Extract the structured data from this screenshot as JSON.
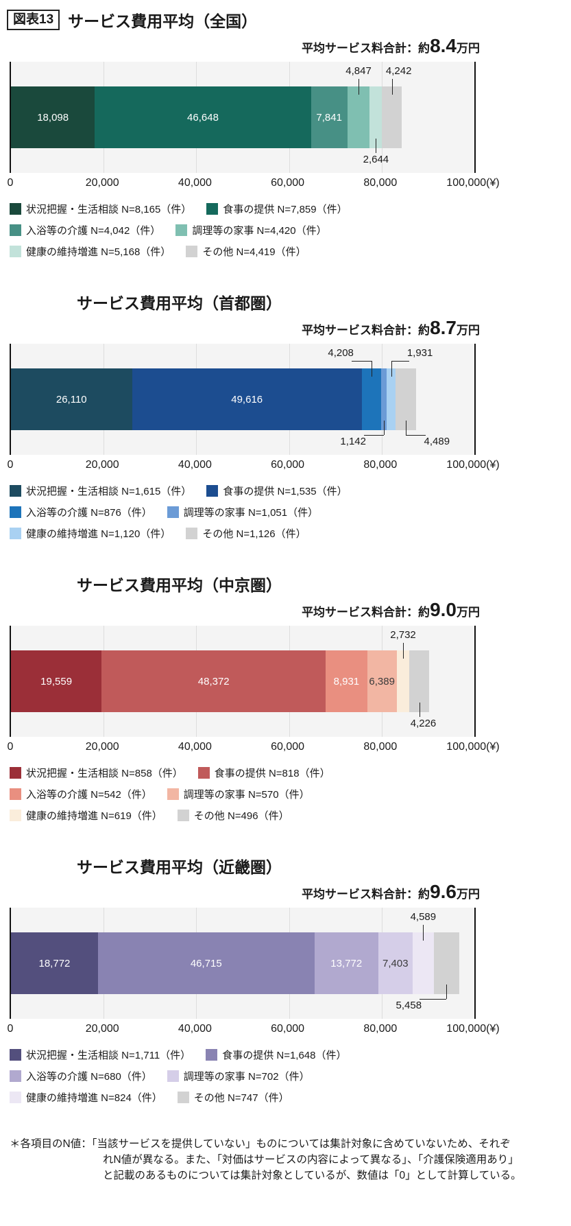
{
  "figure_label": "図表13",
  "page": {
    "total_prefix": "平均サービス料合計：約",
    "total_suffix": "万円"
  },
  "chart_data": [
    {
      "type": "bar",
      "stacked": true,
      "orientation": "horizontal",
      "grid": true,
      "legend_position": "bottom",
      "title": "サービス費用平均（全国）",
      "total_value": "8.4",
      "xlim": [
        0,
        100000
      ],
      "x_ticks": [
        "0",
        "20,000",
        "40,000",
        "60,000",
        "80,000",
        "100,000(¥)"
      ],
      "series": [
        {
          "name": "状況把握・生活相談",
          "n": "N=8,165（件）",
          "value": 18098,
          "display": "18,098",
          "color": "#1a493c",
          "label": "inside",
          "label_color": "#ffffff",
          "shift": 0
        },
        {
          "name": "食事の提供",
          "n": "N=7,859（件）",
          "value": 46648,
          "display": "46,648",
          "color": "#15695c",
          "label": "inside",
          "label_color": "#ffffff",
          "shift": 0
        },
        {
          "name": "入浴等の介護",
          "n": "N=4,042（件）",
          "value": 7841,
          "display": "7,841",
          "color": "#479085",
          "label": "inside",
          "label_color": "#ffffff",
          "shift": 0
        },
        {
          "name": "調理等の家事",
          "n": "N=4,420（件）",
          "value": 4847,
          "display": "4,847",
          "color": "#7fbfb1",
          "label": "above",
          "label_color": "#1a1a1a",
          "shift": 0
        },
        {
          "name": "健康の維持増進",
          "n": "N=5,168（件）",
          "value": 2644,
          "display": "2,644",
          "color": "#c2e2da",
          "label": "below",
          "label_color": "#1a1a1a",
          "shift": 0
        },
        {
          "name": "その他",
          "n": "N=4,419（件）",
          "value": 4242,
          "display": "4,242",
          "color": "#d2d2d2",
          "label": "above",
          "label_color": "#1a1a1a",
          "shift": 10
        }
      ]
    },
    {
      "type": "bar",
      "stacked": true,
      "orientation": "horizontal",
      "grid": true,
      "legend_position": "bottom",
      "title": "サービス費用平均（首都圏）",
      "total_value": "8.7",
      "xlim": [
        0,
        100000
      ],
      "x_ticks": [
        "0",
        "20,000",
        "40,000",
        "60,000",
        "80,000",
        "100,000(¥)"
      ],
      "series": [
        {
          "name": "状況把握・生活相談",
          "n": "N=1,615（件）",
          "value": 26110,
          "display": "26,110",
          "color": "#1d4b60",
          "label": "inside",
          "label_color": "#ffffff",
          "shift": 0
        },
        {
          "name": "食事の提供",
          "n": "N=1,535（件）",
          "value": 49616,
          "display": "49,616",
          "color": "#1c4d90",
          "label": "inside",
          "label_color": "#ffffff",
          "shift": 0
        },
        {
          "name": "入浴等の介護",
          "n": "N=876（件）",
          "value": 4208,
          "display": "4,208",
          "color": "#1d74ba",
          "label": "above",
          "label_color": "#1a1a1a",
          "shift": -45
        },
        {
          "name": "調理等の家事",
          "n": "N=1,051（件）",
          "value": 1142,
          "display": "1,142",
          "color": "#6b9bd6",
          "label": "below",
          "label_color": "#1a1a1a",
          "shift": -45
        },
        {
          "name": "健康の維持増進",
          "n": "N=1,120（件）",
          "value": 1931,
          "display": "1,931",
          "color": "#a9d1f2",
          "label": "above",
          "label_color": "#1a1a1a",
          "shift": 42
        },
        {
          "name": "その他",
          "n": "N=1,126（件）",
          "value": 4489,
          "display": "4,489",
          "color": "#d2d2d2",
          "label": "below",
          "label_color": "#1a1a1a",
          "shift": 45
        }
      ]
    },
    {
      "type": "bar",
      "stacked": true,
      "orientation": "horizontal",
      "grid": true,
      "legend_position": "bottom",
      "title": "サービス費用平均（中京圏）",
      "total_value": "9.0",
      "xlim": [
        0,
        100000
      ],
      "x_ticks": [
        "0",
        "20,000",
        "40,000",
        "60,000",
        "80,000",
        "100,000(¥)"
      ],
      "series": [
        {
          "name": "状況把握・生活相談",
          "n": "N=858（件）",
          "value": 19559,
          "display": "19,559",
          "color": "#9b2f38",
          "label": "inside",
          "label_color": "#ffffff",
          "shift": 0
        },
        {
          "name": "食事の提供",
          "n": "N=818（件）",
          "value": 48372,
          "display": "48,372",
          "color": "#c05a5a",
          "label": "inside",
          "label_color": "#ffffff",
          "shift": 0
        },
        {
          "name": "入浴等の介護",
          "n": "N=542（件）",
          "value": 8931,
          "display": "8,931",
          "color": "#e98f80",
          "label": "inside",
          "label_color": "#ffffff",
          "shift": 0
        },
        {
          "name": "調理等の家事",
          "n": "N=570（件）",
          "value": 6389,
          "display": "6,389",
          "color": "#f2b6a3",
          "label": "inside",
          "label_color": "#3b3b3b",
          "shift": 0
        },
        {
          "name": "健康の維持増進",
          "n": "N=619（件）",
          "value": 2732,
          "display": "2,732",
          "color": "#faeddb",
          "label": "above",
          "label_color": "#1a1a1a",
          "shift": 0
        },
        {
          "name": "その他",
          "n": "N=496（件）",
          "value": 4226,
          "display": "4,226",
          "color": "#d2d2d2",
          "label": "below",
          "label_color": "#1a1a1a",
          "shift": 6
        }
      ]
    },
    {
      "type": "bar",
      "stacked": true,
      "orientation": "horizontal",
      "grid": true,
      "legend_position": "bottom",
      "title": "サービス費用平均（近畿圏）",
      "total_value": "9.6",
      "xlim": [
        0,
        100000
      ],
      "x_ticks": [
        "0",
        "20,000",
        "40,000",
        "60,000",
        "80,000",
        "100,000(¥)"
      ],
      "series": [
        {
          "name": "状況把握・生活相談",
          "n": "N=1,711（件）",
          "value": 18772,
          "display": "18,772",
          "color": "#534f7d",
          "label": "inside",
          "label_color": "#ffffff",
          "shift": 0
        },
        {
          "name": "食事の提供",
          "n": "N=1,648（件）",
          "value": 46715,
          "display": "46,715",
          "color": "#8983b2",
          "label": "inside",
          "label_color": "#ffffff",
          "shift": 0
        },
        {
          "name": "入浴等の介護",
          "n": "N=680（件）",
          "value": 13772,
          "display": "13,772",
          "color": "#b1a9cf",
          "label": "inside",
          "label_color": "#ffffff",
          "shift": 0
        },
        {
          "name": "調理等の家事",
          "n": "N=702（件）",
          "value": 7403,
          "display": "7,403",
          "color": "#d5cee8",
          "label": "inside",
          "label_color": "#3b3b3b",
          "shift": 0
        },
        {
          "name": "健康の維持増進",
          "n": "N=824（件）",
          "value": 4589,
          "display": "4,589",
          "color": "#ece7f4",
          "label": "above",
          "label_color": "#1a1a1a",
          "shift": 0
        },
        {
          "name": "その他",
          "n": "N=747（件）",
          "value": 5458,
          "display": "5,458",
          "color": "#d2d2d2",
          "label": "below",
          "label_color": "#1a1a1a",
          "shift": -55
        }
      ]
    }
  ],
  "footnote": {
    "lines": [
      "＊各項目のN値：「当該サービスを提供していない」ものについては集計対象に含めていないため、それぞ",
      "れN値が異なる。また、「対価はサービスの内容によって異なる」、「介護保険適用あり」",
      "と記載のあるものについては集計対象としているが、数値は「0」として計算している。"
    ]
  }
}
